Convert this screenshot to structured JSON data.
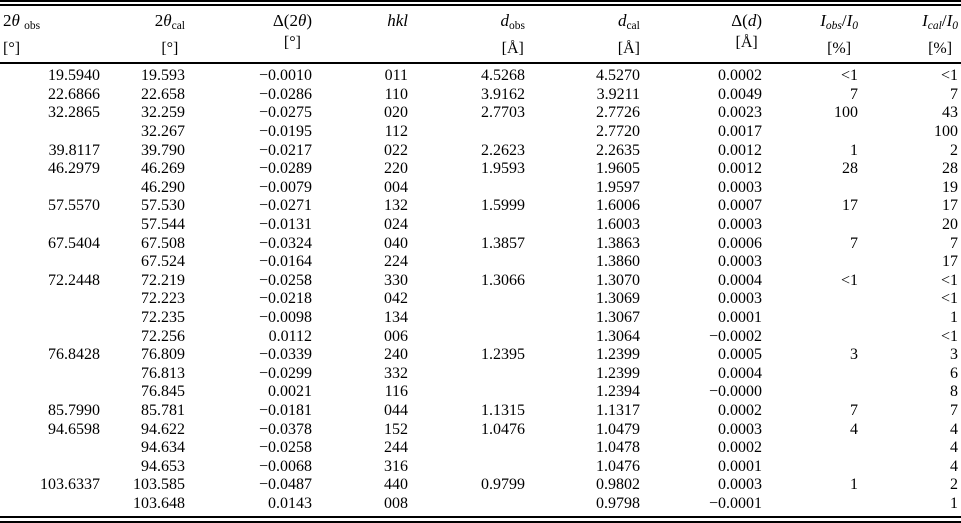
{
  "page": {
    "background_color": "#ffffff",
    "text_color": "#000000",
    "rule_color": "#000000"
  },
  "table": {
    "columns": [
      {
        "key": "two-theta-obs",
        "header_parts": [
          {
            "t": "2"
          },
          {
            "t": "θ",
            "s": "i"
          },
          {
            "t": " "
          },
          {
            "t": "obs",
            "s": "sub"
          }
        ],
        "unit": "[°]",
        "header_align": "left"
      },
      {
        "key": "two-theta-cal",
        "header_parts": [
          {
            "t": "2"
          },
          {
            "t": "θ",
            "s": "i"
          },
          {
            "t": "cal",
            "s": "sub"
          }
        ],
        "unit": "[°]",
        "header_align": "right"
      },
      {
        "key": "delta-two-theta",
        "header_parts": [
          {
            "t": "Δ(2"
          },
          {
            "t": "θ",
            "s": "i"
          },
          {
            "t": ")"
          }
        ],
        "unit": "[°]",
        "header_align": "right"
      },
      {
        "key": "hkl",
        "header_parts": [
          {
            "t": "hkl",
            "s": "i"
          }
        ],
        "unit": "",
        "header_align": "center"
      },
      {
        "key": "d-obs",
        "header_parts": [
          {
            "t": "d",
            "s": "i"
          },
          {
            "t": "obs",
            "s": "sub"
          }
        ],
        "unit": "[Å]",
        "header_align": "right"
      },
      {
        "key": "d-cal",
        "header_parts": [
          {
            "t": "d",
            "s": "i"
          },
          {
            "t": "cal",
            "s": "sub"
          }
        ],
        "unit": "[Å]",
        "header_align": "right"
      },
      {
        "key": "delta-d",
        "header_parts": [
          {
            "t": "Δ("
          },
          {
            "t": "d",
            "s": "i"
          },
          {
            "t": ")"
          }
        ],
        "unit": "[Å]",
        "header_align": "right"
      },
      {
        "key": "i-obs-over-i0",
        "header_parts": [
          {
            "t": "I",
            "s": "i"
          },
          {
            "t": "obs",
            "s": "subi"
          },
          {
            "t": "/"
          },
          {
            "t": "I",
            "s": "i"
          },
          {
            "t": "0",
            "s": "subi"
          }
        ],
        "unit": "[%]",
        "header_align": "right"
      },
      {
        "key": "i-cal-over-i0",
        "header_parts": [
          {
            "t": "I",
            "s": "i"
          },
          {
            "t": "cal",
            "s": "subi"
          },
          {
            "t": "/"
          },
          {
            "t": "I",
            "s": "i"
          },
          {
            "t": "0",
            "s": "subi"
          }
        ],
        "unit": "[%]",
        "header_align": "right"
      }
    ],
    "rows": [
      [
        "19.5940",
        "19.593",
        "−0.0010",
        "011",
        "4.5268",
        "4.5270",
        "0.0002",
        "<1",
        "<1"
      ],
      [
        "22.6866",
        "22.658",
        "−0.0286",
        "110",
        "3.9162",
        "3.9211",
        "0.0049",
        "7",
        "7"
      ],
      [
        "32.2865",
        "32.259",
        "−0.0275",
        "020",
        "2.7703",
        "2.7726",
        "0.0023",
        "100",
        "43"
      ],
      [
        "",
        "32.267",
        "−0.0195",
        "112",
        "",
        "2.7720",
        "0.0017",
        "",
        "100"
      ],
      [
        "39.8117",
        "39.790",
        "−0.0217",
        "022",
        "2.2623",
        "2.2635",
        "0.0012",
        "1",
        "2"
      ],
      [
        "46.2979",
        "46.269",
        "−0.0289",
        "220",
        "1.9593",
        "1.9605",
        "0.0012",
        "28",
        "28"
      ],
      [
        "",
        "46.290",
        "−0.0079",
        "004",
        "",
        "1.9597",
        "0.0003",
        "",
        "19"
      ],
      [
        "57.5570",
        "57.530",
        "−0.0271",
        "132",
        "1.5999",
        "1.6006",
        "0.0007",
        "17",
        "17"
      ],
      [
        "",
        "57.544",
        "−0.0131",
        "024",
        "",
        "1.6003",
        "0.0003",
        "",
        "20"
      ],
      [
        "67.5404",
        "67.508",
        "−0.0324",
        "040",
        "1.3857",
        "1.3863",
        "0.0006",
        "7",
        "7"
      ],
      [
        "",
        "67.524",
        "−0.0164",
        "224",
        "",
        "1.3860",
        "0.0003",
        "",
        "17"
      ],
      [
        "72.2448",
        "72.219",
        "−0.0258",
        "330",
        "1.3066",
        "1.3070",
        "0.0004",
        "<1",
        "<1"
      ],
      [
        "",
        "72.223",
        "−0.0218",
        "042",
        "",
        "1.3069",
        "0.0003",
        "",
        "<1"
      ],
      [
        "",
        "72.235",
        "−0.0098",
        "134",
        "",
        "1.3067",
        "0.0001",
        "",
        "1"
      ],
      [
        "",
        "72.256",
        "0.0112",
        "006",
        "",
        "1.3064",
        "−0.0002",
        "",
        "<1"
      ],
      [
        "76.8428",
        "76.809",
        "−0.0339",
        "240",
        "1.2395",
        "1.2399",
        "0.0005",
        "3",
        "3"
      ],
      [
        "",
        "76.813",
        "−0.0299",
        "332",
        "",
        "1.2399",
        "0.0004",
        "",
        "6"
      ],
      [
        "",
        "76.845",
        "0.0021",
        "116",
        "",
        "1.2394",
        "−0.0000",
        "",
        "8"
      ],
      [
        "85.7990",
        "85.781",
        "−0.0181",
        "044",
        "1.1315",
        "1.1317",
        "0.0002",
        "7",
        "7"
      ],
      [
        "94.6598",
        "94.622",
        "−0.0378",
        "152",
        "1.0476",
        "1.0479",
        "0.0003",
        "4",
        "4"
      ],
      [
        "",
        "94.634",
        "−0.0258",
        "244",
        "",
        "1.0478",
        "0.0002",
        "",
        "4"
      ],
      [
        "",
        "94.653",
        "−0.0068",
        "316",
        "",
        "1.0476",
        "0.0001",
        "",
        "4"
      ],
      [
        "103.6337",
        "103.585",
        "−0.0487",
        "440",
        "0.9799",
        "0.9802",
        "0.0003",
        "1",
        "2"
      ],
      [
        "",
        "103.648",
        "0.0143",
        "008",
        "",
        "0.9798",
        "−0.0001",
        "",
        "1"
      ]
    ]
  }
}
